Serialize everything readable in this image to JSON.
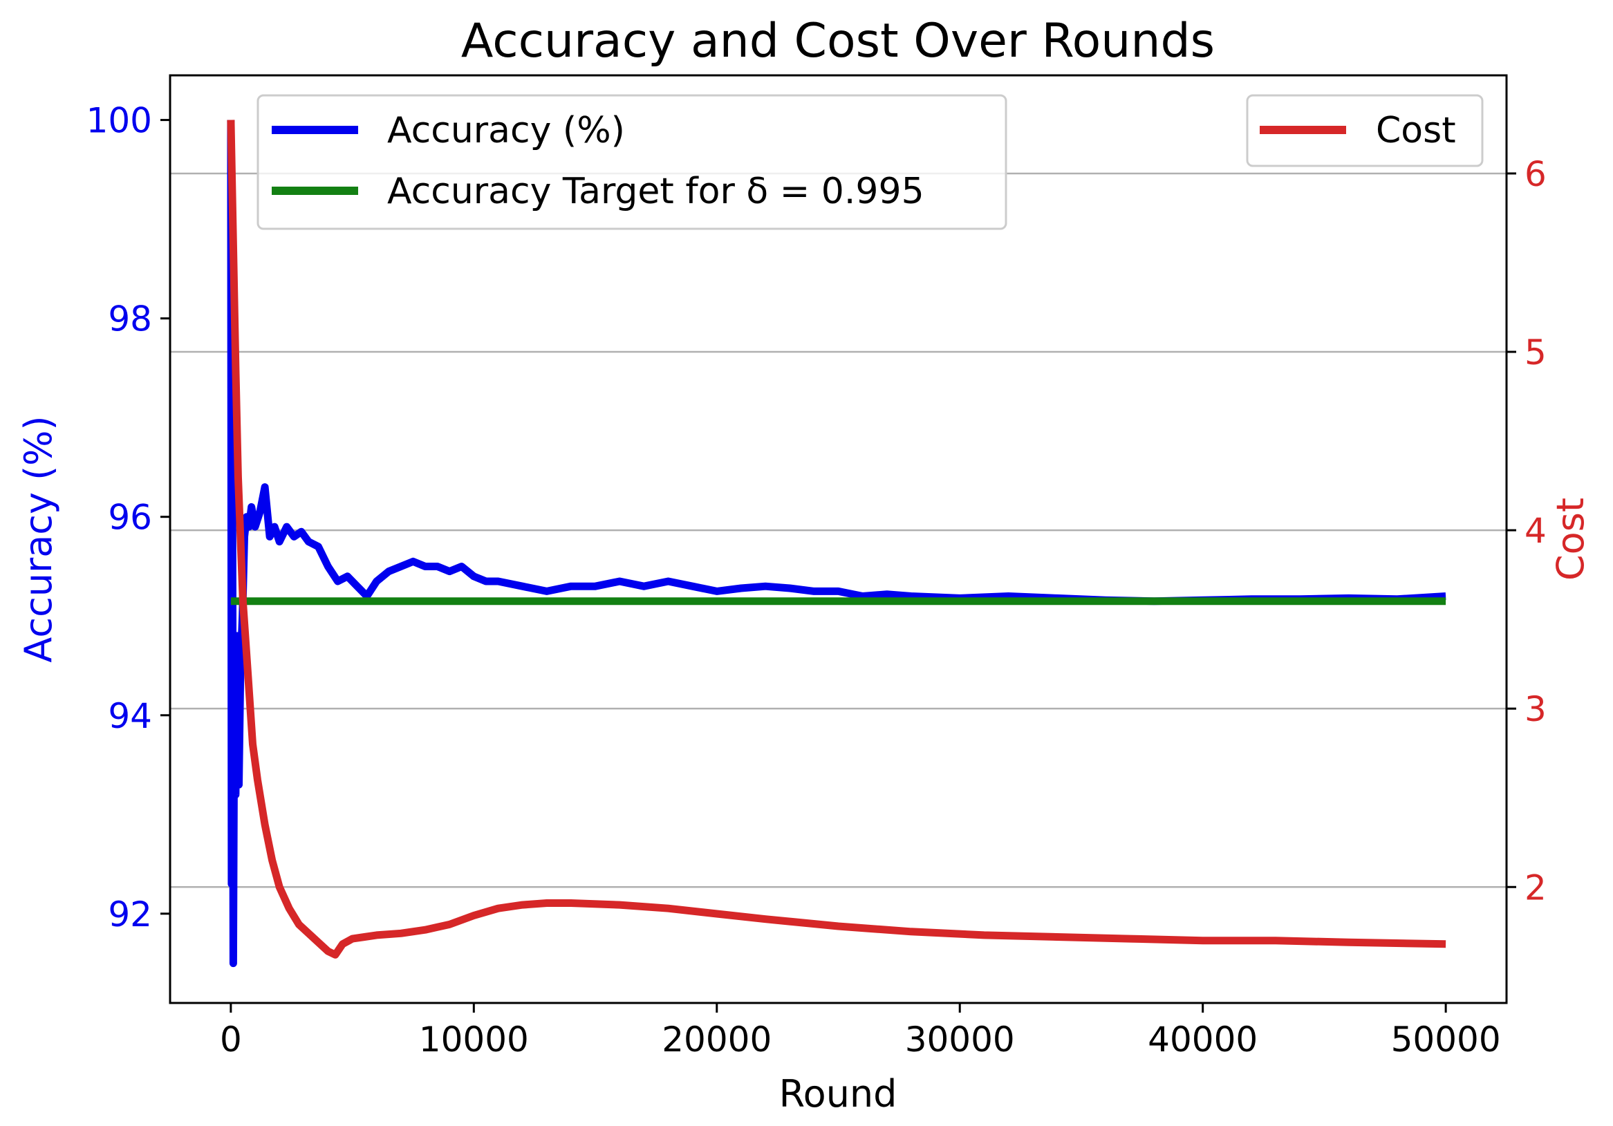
{
  "chart_data": {
    "type": "line",
    "title": "Accuracy and Cost Over Rounds",
    "xlabel": "Round",
    "ylabel_left": "Accuracy (%)",
    "ylabel_right": "Cost",
    "xlim": [
      -2500,
      52500
    ],
    "ylim_left": [
      91.1,
      100.45
    ],
    "ylim_right": [
      1.35,
      6.55
    ],
    "xticks": [
      0,
      10000,
      20000,
      30000,
      40000,
      50000
    ],
    "xtick_labels": [
      "0",
      "10000",
      "20000",
      "30000",
      "40000",
      "50000"
    ],
    "yticks_left": [
      92,
      94,
      96,
      98,
      100
    ],
    "ytick_labels_left": [
      "92",
      "94",
      "96",
      "98",
      "100"
    ],
    "yticks_right": [
      2,
      3,
      4,
      5,
      6
    ],
    "ytick_labels_right": [
      "2",
      "3",
      "4",
      "5",
      "6"
    ],
    "grid": "horizontal-right-axis",
    "legend_left": {
      "placement": "upper-left",
      "entries": [
        "Accuracy (%)",
        "Accuracy Target for δ = 0.995"
      ]
    },
    "legend_right": {
      "placement": "upper-right",
      "entries": [
        "Cost"
      ]
    },
    "colors": {
      "accuracy": "#0000ee",
      "target": "#138013",
      "cost": "#d62728",
      "left_axis_text": "#0000ee",
      "right_axis_text": "#d62728"
    },
    "series": [
      {
        "name": "Accuracy (%)",
        "axis": "left",
        "color": "#0000ee",
        "x": [
          0,
          30,
          60,
          100,
          150,
          200,
          260,
          330,
          400,
          480,
          560,
          650,
          750,
          850,
          1000,
          1200,
          1400,
          1600,
          1800,
          2000,
          2300,
          2600,
          2900,
          3200,
          3600,
          4000,
          4400,
          4800,
          5200,
          5600,
          6000,
          6500,
          7000,
          7500,
          8000,
          8500,
          9000,
          9500,
          10000,
          10500,
          11000,
          12000,
          13000,
          14000,
          15000,
          16000,
          17000,
          18000,
          19000,
          20000,
          21000,
          22000,
          23000,
          24000,
          25000,
          26000,
          27000,
          28000,
          30000,
          32000,
          34000,
          36000,
          38000,
          40000,
          42000,
          44000,
          46000,
          48000,
          50000
        ],
        "y": [
          100.0,
          92.3,
          97.0,
          91.5,
          94.5,
          93.2,
          94.8,
          93.3,
          94.5,
          95.0,
          95.8,
          96.0,
          95.9,
          96.1,
          95.9,
          96.05,
          96.3,
          95.8,
          95.9,
          95.75,
          95.9,
          95.8,
          95.85,
          95.75,
          95.7,
          95.5,
          95.35,
          95.4,
          95.3,
          95.2,
          95.35,
          95.45,
          95.5,
          95.55,
          95.5,
          95.5,
          95.45,
          95.5,
          95.4,
          95.35,
          95.35,
          95.3,
          95.25,
          95.3,
          95.3,
          95.35,
          95.3,
          95.35,
          95.3,
          95.25,
          95.28,
          95.3,
          95.28,
          95.25,
          95.25,
          95.2,
          95.22,
          95.2,
          95.18,
          95.2,
          95.18,
          95.16,
          95.15,
          95.16,
          95.17,
          95.17,
          95.18,
          95.17,
          95.2
        ]
      },
      {
        "name": "Accuracy Target for δ = 0.995",
        "axis": "left",
        "color": "#138013",
        "x": [
          0,
          50000
        ],
        "y": [
          95.15,
          95.15
        ]
      },
      {
        "name": "Cost",
        "axis": "right",
        "color": "#d62728",
        "x": [
          0,
          100,
          200,
          300,
          400,
          500,
          700,
          900,
          1100,
          1400,
          1700,
          2000,
          2400,
          2800,
          3200,
          3600,
          4000,
          4300,
          4600,
          5000,
          5500,
          6000,
          7000,
          8000,
          9000,
          10000,
          11000,
          12000,
          13000,
          14000,
          16000,
          18000,
          20000,
          22000,
          25000,
          28000,
          31000,
          34000,
          37000,
          40000,
          43000,
          46000,
          50000
        ],
        "y": [
          6.3,
          5.6,
          4.9,
          4.3,
          3.95,
          3.6,
          3.2,
          2.8,
          2.6,
          2.35,
          2.15,
          2.0,
          1.88,
          1.79,
          1.74,
          1.69,
          1.64,
          1.62,
          1.68,
          1.71,
          1.72,
          1.73,
          1.74,
          1.76,
          1.79,
          1.84,
          1.88,
          1.9,
          1.91,
          1.91,
          1.9,
          1.88,
          1.85,
          1.82,
          1.78,
          1.75,
          1.73,
          1.72,
          1.71,
          1.7,
          1.7,
          1.69,
          1.68
        ]
      }
    ]
  }
}
